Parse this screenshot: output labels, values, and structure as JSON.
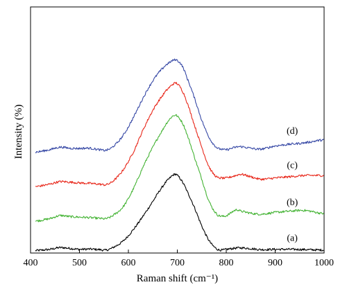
{
  "chart_data": {
    "type": "line",
    "xlabel": "Raman shift (cm⁻¹)",
    "ylabel": "Intensity (%)",
    "xlim": [
      400,
      1000
    ],
    "ylim": [
      0,
      100
    ],
    "xticks": [
      400,
      500,
      600,
      700,
      800,
      900,
      1000
    ],
    "x": [
      410,
      440,
      460,
      480,
      500,
      520,
      540,
      555,
      570,
      590,
      610,
      630,
      650,
      670,
      685,
      695,
      700,
      710,
      720,
      735,
      750,
      765,
      780,
      790,
      800,
      820,
      830,
      850,
      870,
      900,
      930,
      960,
      1000
    ],
    "series": [
      {
        "name": "(a)",
        "color": "#000000",
        "values": [
          1.0,
          1.5,
          2.2,
          1.9,
          1.5,
          1.6,
          1.4,
          1.2,
          2.4,
          5.0,
          9.5,
          15.0,
          21.0,
          27.0,
          30.5,
          32.0,
          31.5,
          29.0,
          25.0,
          18.5,
          11.0,
          5.0,
          1.8,
          1.2,
          1.5,
          2.0,
          2.1,
          1.8,
          1.4,
          1.5,
          1.5,
          1.4,
          1.2
        ]
      },
      {
        "name": "(b)",
        "color": "#44b334",
        "values": [
          13.0,
          14.0,
          15.2,
          14.8,
          14.6,
          14.4,
          14.1,
          14.0,
          15.5,
          19.0,
          26.0,
          35.0,
          43.0,
          50.0,
          54.5,
          56.0,
          55.5,
          53.0,
          48.0,
          39.0,
          30.0,
          21.0,
          16.0,
          15.0,
          15.2,
          17.5,
          17.0,
          16.2,
          15.8,
          16.5,
          17.0,
          17.3,
          16.0
        ]
      },
      {
        "name": "(c)",
        "color": "#e8271a",
        "values": [
          27.0,
          28.0,
          29.0,
          28.8,
          28.5,
          28.3,
          28.0,
          27.8,
          29.5,
          34.0,
          41.0,
          50.0,
          58.0,
          64.0,
          67.5,
          69.0,
          68.7,
          66.0,
          61.0,
          52.0,
          43.0,
          35.0,
          31.0,
          30.5,
          30.5,
          31.5,
          32.0,
          31.0,
          30.0,
          30.5,
          31.0,
          31.5,
          31.5
        ]
      },
      {
        "name": "(d)",
        "color": "#3648a5",
        "values": [
          41.0,
          42.0,
          43.0,
          42.6,
          42.5,
          42.6,
          42.0,
          41.8,
          43.5,
          48.0,
          55.0,
          63.0,
          70.0,
          75.0,
          77.5,
          78.5,
          78.2,
          76.0,
          71.0,
          63.0,
          54.0,
          47.0,
          43.0,
          42.2,
          42.0,
          43.0,
          43.2,
          42.6,
          42.2,
          43.5,
          44.2,
          44.8,
          46.0
        ]
      }
    ],
    "annotations": [
      {
        "text": "(a)",
        "x": 935,
        "y": 5
      },
      {
        "text": "(b)",
        "x": 935,
        "y": 19.5
      },
      {
        "text": "(c)",
        "x": 935,
        "y": 34.5
      },
      {
        "text": "(d)",
        "x": 935,
        "y": 48.5
      }
    ],
    "grid": false,
    "legend": "none"
  }
}
